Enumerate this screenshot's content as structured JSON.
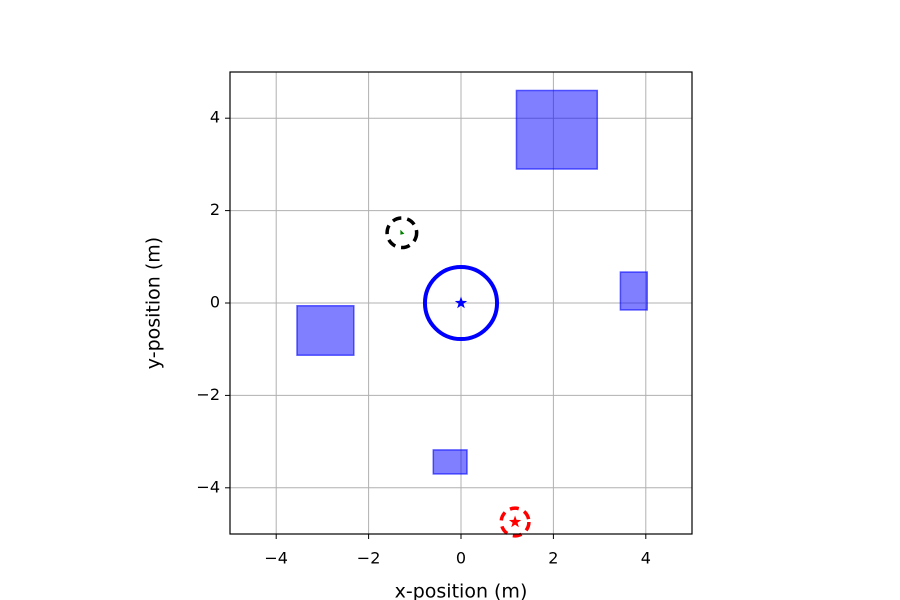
{
  "chart_data": {
    "type": "map",
    "xlabel": "x-position (m)",
    "ylabel": "y-position (m)",
    "xlim": [
      -5,
      5
    ],
    "ylim": [
      -5,
      5
    ],
    "xticks": [
      {
        "value": -4,
        "label": "−4"
      },
      {
        "value": -2,
        "label": "−2"
      },
      0,
      2,
      4
    ],
    "yticks": [
      {
        "value": -4,
        "label": "−4"
      },
      {
        "value": -2,
        "label": "−2"
      },
      0,
      2,
      4
    ],
    "grid": true,
    "obstacle_color": "#0000ff",
    "obstacles": [
      {
        "x": 1.2,
        "y": 2.9,
        "width": 1.75,
        "height": 1.7
      },
      {
        "x": 3.45,
        "y": -0.15,
        "width": 0.58,
        "height": 0.82
      },
      {
        "x": -3.55,
        "y": -1.13,
        "width": 1.23,
        "height": 1.07
      },
      {
        "x": -0.6,
        "y": -3.7,
        "width": 0.73,
        "height": 0.52
      }
    ],
    "circles": [
      {
        "x": 0,
        "y": 0,
        "radius": 0.78,
        "color": "#0000ff",
        "dashed": false
      },
      {
        "x": -1.28,
        "y": 1.52,
        "radius": 0.32,
        "color": "#000000",
        "dashed": true
      },
      {
        "x": 1.17,
        "y": -4.74,
        "radius": 0.3,
        "color": "#ff0000",
        "dashed": true
      }
    ],
    "markers": [
      {
        "x": 0,
        "y": 0,
        "marker": "star",
        "color": "#0000ff"
      },
      {
        "x": -1.28,
        "y": 1.52,
        "marker": "triangle",
        "color": "#008000"
      },
      {
        "x": 1.17,
        "y": -4.74,
        "marker": "star",
        "color": "#ff0000"
      }
    ]
  }
}
